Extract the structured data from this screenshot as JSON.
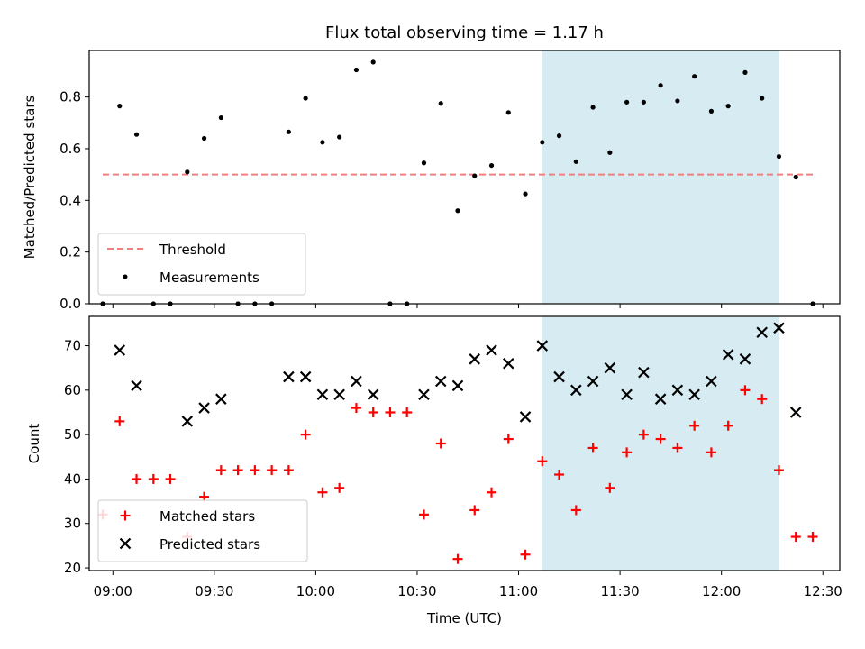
{
  "chart_data": [
    {
      "type": "scatter",
      "title": "Flux total observing time = 1.17 h",
      "xlabel": "",
      "ylabel": "Matched/Predicted stars",
      "xlim": [
        "08:53",
        "12:35"
      ],
      "ylim": [
        0,
        0.98
      ],
      "yticks": [
        0.0,
        0.2,
        0.4,
        0.6,
        0.8
      ],
      "ytick_labels": [
        "0.0",
        "0.2",
        "0.4",
        "0.6",
        "0.8"
      ],
      "legend_loc": "lower-left",
      "highlight_span": {
        "x": [
          "11:07",
          "12:17"
        ],
        "color": "#add8e6"
      },
      "threshold": {
        "name": "Threshold",
        "x": [
          "08:57",
          "12:27"
        ],
        "y": 0.5,
        "color": "#f08080"
      },
      "series": [
        {
          "name": "Measurements",
          "color": "#000000",
          "x": [
            "08:57",
            "09:02",
            "09:07",
            "09:12",
            "09:17",
            "09:22",
            "09:27",
            "09:32",
            "09:37",
            "09:42",
            "09:47",
            "09:52",
            "09:57",
            "10:02",
            "10:07",
            "10:12",
            "10:17",
            "10:22",
            "10:27",
            "10:32",
            "10:37",
            "10:42",
            "10:47",
            "10:52",
            "10:57",
            "11:02",
            "11:07",
            "11:12",
            "11:17",
            "11:22",
            "11:27",
            "11:32",
            "11:37",
            "11:42",
            "11:47",
            "11:52",
            "11:57",
            "12:02",
            "12:07",
            "12:12",
            "12:17",
            "12:22",
            "12:27"
          ],
          "y": [
            0.0,
            0.765,
            0.655,
            0.0,
            0.0,
            0.51,
            0.64,
            0.72,
            0.0,
            0.0,
            0.0,
            0.665,
            0.795,
            0.625,
            0.645,
            0.905,
            0.935,
            0.0,
            0.0,
            0.545,
            0.775,
            0.36,
            0.495,
            0.535,
            0.74,
            0.425,
            0.625,
            0.65,
            0.55,
            0.76,
            0.585,
            0.78,
            0.78,
            0.845,
            0.785,
            0.88,
            0.745,
            0.765,
            0.895,
            0.795,
            0.57,
            0.49,
            0.0
          ]
        }
      ]
    },
    {
      "type": "scatter",
      "title": "",
      "xlabel": "Time (UTC)",
      "ylabel": "Count",
      "xlim": [
        "08:53",
        "12:35"
      ],
      "ylim": [
        19.4,
        76.6
      ],
      "yticks": [
        20,
        30,
        40,
        50,
        60,
        70
      ],
      "ytick_labels": [
        "20",
        "30",
        "40",
        "50",
        "60",
        "70"
      ],
      "xticks": [
        "09:00",
        "09:30",
        "10:00",
        "10:30",
        "11:00",
        "11:30",
        "12:00",
        "12:30"
      ],
      "legend_loc": "lower-left",
      "highlight_span": {
        "x": [
          "11:07",
          "12:17"
        ],
        "color": "#add8e6"
      },
      "series": [
        {
          "name": "Matched stars",
          "marker": "+",
          "color": "#ff0000",
          "x": [
            "08:57",
            "09:02",
            "09:07",
            "09:12",
            "09:17",
            "09:22",
            "09:27",
            "09:32",
            "09:37",
            "09:42",
            "09:47",
            "09:52",
            "09:57",
            "10:02",
            "10:07",
            "10:12",
            "10:17",
            "10:22",
            "10:27",
            "10:32",
            "10:37",
            "10:42",
            "10:47",
            "10:52",
            "10:57",
            "11:02",
            "11:07",
            "11:12",
            "11:17",
            "11:22",
            "11:27",
            "11:32",
            "11:37",
            "11:42",
            "11:47",
            "11:52",
            "11:57",
            "12:02",
            "12:07",
            "12:12",
            "12:17",
            "12:22",
            "12:27"
          ],
          "y": [
            32,
            53,
            40,
            40,
            40,
            27,
            36,
            42,
            42,
            42,
            42,
            42,
            50,
            37,
            38,
            56,
            55,
            55,
            55,
            32,
            48,
            22,
            33,
            37,
            49,
            23,
            44,
            41,
            33,
            47,
            38,
            46,
            50,
            49,
            47,
            52,
            46,
            52,
            60,
            58,
            42,
            27,
            27
          ]
        },
        {
          "name": "Predicted stars",
          "marker": "x",
          "color": "#000000",
          "x": [
            "09:02",
            "09:07",
            "09:22",
            "09:27",
            "09:32",
            "09:52",
            "09:57",
            "10:02",
            "10:07",
            "10:12",
            "10:17",
            "10:32",
            "10:37",
            "10:42",
            "10:47",
            "10:52",
            "10:57",
            "11:02",
            "11:07",
            "11:12",
            "11:17",
            "11:22",
            "11:27",
            "11:32",
            "11:37",
            "11:42",
            "11:47",
            "11:52",
            "11:57",
            "12:02",
            "12:07",
            "12:12",
            "12:17",
            "12:22"
          ],
          "y": [
            69,
            61,
            53,
            56,
            58,
            63,
            63,
            59,
            59,
            62,
            59,
            59,
            62,
            61,
            67,
            69,
            66,
            54,
            70,
            63,
            60,
            62,
            65,
            59,
            64,
            58,
            60,
            59,
            62,
            68,
            67,
            73,
            74,
            55
          ]
        }
      ]
    }
  ]
}
